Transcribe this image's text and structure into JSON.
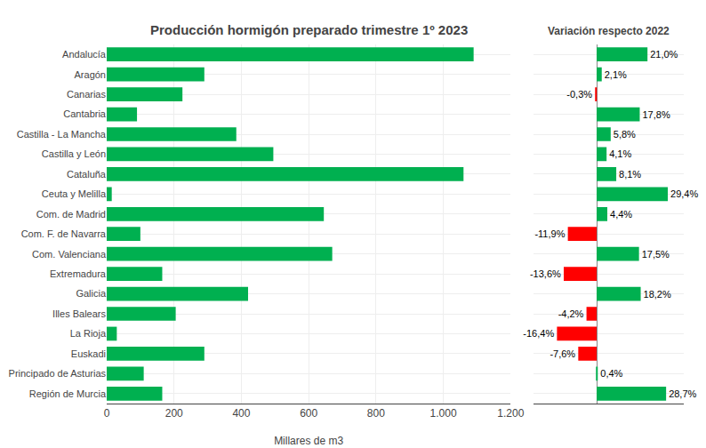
{
  "chart_data": [
    {
      "type": "bar",
      "orientation": "horizontal",
      "title": "Producción hormigón preparado trimestre 1º 2023",
      "xlabel": "Millares de m3",
      "categories": [
        "Andalucía",
        "Aragón",
        "Canarias",
        "Cantabria",
        "Castilla - La Mancha",
        "Castilla y León",
        "Cataluña",
        "Ceuta y Melilla",
        "Com. de Madrid",
        "Com. F. de Navarra",
        "Com. Valenciana",
        "Extremadura",
        "Galicia",
        "Illes Balears",
        "La Rioja",
        "Euskadi",
        "Principado de Asturias",
        "Región de Murcia"
      ],
      "values": [
        1090,
        290,
        225,
        90,
        385,
        495,
        1060,
        15,
        645,
        100,
        670,
        165,
        420,
        205,
        30,
        290,
        110,
        165
      ],
      "color": "#00b050",
      "xlim": [
        0,
        1200
      ],
      "xticks": [
        0,
        200,
        400,
        600,
        800,
        {
          "value": 1000,
          "label": "1.000"
        },
        {
          "value": 1200,
          "label": "1.200"
        }
      ],
      "grid": true
    },
    {
      "type": "bar",
      "orientation": "horizontal",
      "title": "Variación respecto 2022",
      "categories": [
        "Andalucía",
        "Aragón",
        "Canarias",
        "Cantabria",
        "Castilla - La Mancha",
        "Castilla y León",
        "Cataluña",
        "Ceuta y Melilla",
        "Com. de Madrid",
        "Com. F. de Navarra",
        "Com. Valenciana",
        "Extremadura",
        "Galicia",
        "Illes Balears",
        "La Rioja",
        "Euskadi",
        "Principado de Asturias",
        "Región de Murcia"
      ],
      "values": [
        21.0,
        2.1,
        -0.3,
        17.8,
        5.8,
        4.1,
        8.1,
        29.4,
        4.4,
        -11.9,
        17.5,
        -13.6,
        18.2,
        -4.2,
        -16.4,
        -7.6,
        0.4,
        28.7
      ],
      "value_labels": [
        "21,0%",
        "2,1%",
        "-0,3%",
        "17,8%",
        "5,8%",
        "4,1%",
        "8,1%",
        "29,4%",
        "4,4%",
        "-11,9%",
        "17,5%",
        "-13,6%",
        "18,2%",
        "-4,2%",
        "-16,4%",
        "-7,6%",
        "0,4%",
        "28,7%"
      ],
      "colors": [
        "#00b050",
        "#00b050",
        "#ff0000",
        "#00b050",
        "#00b050",
        "#00b050",
        "#00b050",
        "#00b050",
        "#00b050",
        "#ff0000",
        "#00b050",
        "#ff0000",
        "#00b050",
        "#ff0000",
        "#ff0000",
        "#ff0000",
        "#00b050",
        "#00b050"
      ],
      "xlim": [
        -26,
        36
      ],
      "data_labels": true,
      "tick_labels": false,
      "grid": "y"
    }
  ]
}
